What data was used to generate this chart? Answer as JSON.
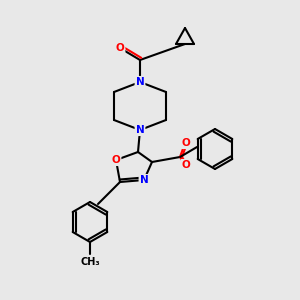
{
  "bg_color": "#e8e8e8",
  "bond_color": "#000000",
  "bond_width": 1.5,
  "atom_colors": {
    "N": "#0000ff",
    "O": "#ff0000",
    "S": "#cccc00",
    "C": "#000000"
  },
  "font_size": 7.5
}
